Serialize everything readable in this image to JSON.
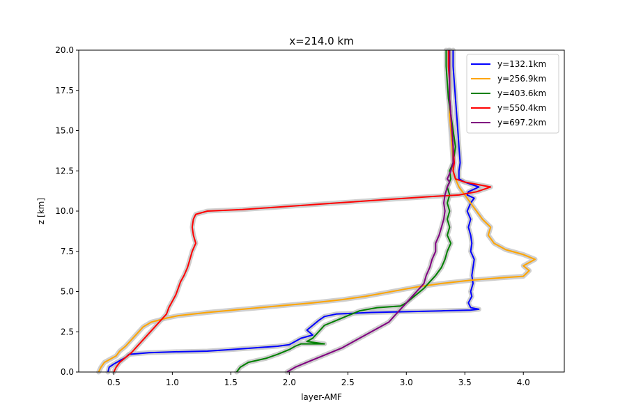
{
  "chart_data": {
    "type": "line",
    "title": "x=214.0 km",
    "xlabel": "layer-AMF",
    "ylabel": "z [km]",
    "xlim": [
      0.2,
      4.35
    ],
    "ylim": [
      0,
      20
    ],
    "xticks": [
      0.5,
      1.0,
      1.5,
      2.0,
      2.5,
      3.0,
      3.5,
      4.0
    ],
    "xtick_labels": [
      "0.5",
      "1.0",
      "1.5",
      "2.0",
      "2.5",
      "3.0",
      "3.5",
      "4.0"
    ],
    "yticks": [
      0,
      2.5,
      5,
      7.5,
      10,
      12.5,
      15,
      17.5,
      20
    ],
    "ytick_labels": [
      "0.0",
      "2.5",
      "5.0",
      "7.5",
      "10.0",
      "12.5",
      "15.0",
      "17.5",
      "20.0"
    ],
    "grid": false,
    "legend_position": "top-right",
    "uncertainty_band_color": "#bfbfbf",
    "series": [
      {
        "name": "y=132.1km",
        "color": "#0000ff",
        "points": [
          [
            0.45,
            0
          ],
          [
            0.46,
            0.3
          ],
          [
            0.5,
            0.5
          ],
          [
            0.55,
            0.7
          ],
          [
            0.6,
            0.9
          ],
          [
            0.63,
            1.1
          ],
          [
            0.8,
            1.2
          ],
          [
            1.0,
            1.25
          ],
          [
            1.3,
            1.3
          ],
          [
            1.5,
            1.4
          ],
          [
            1.7,
            1.5
          ],
          [
            1.9,
            1.6
          ],
          [
            2.0,
            1.7
          ],
          [
            2.05,
            1.9
          ],
          [
            2.1,
            2.1
          ],
          [
            2.2,
            2.3
          ],
          [
            2.15,
            2.6
          ],
          [
            2.2,
            2.9
          ],
          [
            2.25,
            3.2
          ],
          [
            2.3,
            3.45
          ],
          [
            2.4,
            3.6
          ],
          [
            2.7,
            3.7
          ],
          [
            3.0,
            3.75
          ],
          [
            3.3,
            3.8
          ],
          [
            3.55,
            3.85
          ],
          [
            3.62,
            3.9
          ],
          [
            3.55,
            4.0
          ],
          [
            3.53,
            4.3
          ],
          [
            3.56,
            4.7
          ],
          [
            3.55,
            5.0
          ],
          [
            3.57,
            5.5
          ],
          [
            3.56,
            6.0
          ],
          [
            3.57,
            6.5
          ],
          [
            3.58,
            7.0
          ],
          [
            3.55,
            7.5
          ],
          [
            3.56,
            8.0
          ],
          [
            3.55,
            8.5
          ],
          [
            3.53,
            9.0
          ],
          [
            3.55,
            9.5
          ],
          [
            3.52,
            10.0
          ],
          [
            3.55,
            10.5
          ],
          [
            3.58,
            10.8
          ],
          [
            3.52,
            11.0
          ],
          [
            3.53,
            11.2
          ],
          [
            3.62,
            11.5
          ],
          [
            3.5,
            11.8
          ],
          [
            3.45,
            12.0
          ],
          [
            3.45,
            12.5
          ],
          [
            3.46,
            13.0
          ],
          [
            3.45,
            14.0
          ],
          [
            3.44,
            15.0
          ],
          [
            3.43,
            16.0
          ],
          [
            3.42,
            17.0
          ],
          [
            3.41,
            18.0
          ],
          [
            3.4,
            19.0
          ],
          [
            3.4,
            20.0
          ]
        ]
      },
      {
        "name": "y=256.9km",
        "color": "#ffa500",
        "points": [
          [
            0.37,
            0
          ],
          [
            0.39,
            0.3
          ],
          [
            0.42,
            0.6
          ],
          [
            0.47,
            0.8
          ],
          [
            0.52,
            1.0
          ],
          [
            0.55,
            1.3
          ],
          [
            0.6,
            1.6
          ],
          [
            0.65,
            2.0
          ],
          [
            0.7,
            2.4
          ],
          [
            0.75,
            2.8
          ],
          [
            0.82,
            3.1
          ],
          [
            0.95,
            3.35
          ],
          [
            1.05,
            3.5
          ],
          [
            1.3,
            3.7
          ],
          [
            1.6,
            3.9
          ],
          [
            1.9,
            4.1
          ],
          [
            2.2,
            4.3
          ],
          [
            2.45,
            4.5
          ],
          [
            2.65,
            4.7
          ],
          [
            2.8,
            4.9
          ],
          [
            2.95,
            5.1
          ],
          [
            3.1,
            5.3
          ],
          [
            3.3,
            5.5
          ],
          [
            3.55,
            5.7
          ],
          [
            3.8,
            5.85
          ],
          [
            4.0,
            5.95
          ],
          [
            4.05,
            6.3
          ],
          [
            4.0,
            6.6
          ],
          [
            4.1,
            7.0
          ],
          [
            4.0,
            7.3
          ],
          [
            3.85,
            7.6
          ],
          [
            3.75,
            8.0
          ],
          [
            3.7,
            8.5
          ],
          [
            3.72,
            9.0
          ],
          [
            3.65,
            9.5
          ],
          [
            3.6,
            10.0
          ],
          [
            3.55,
            10.5
          ],
          [
            3.5,
            11.0
          ],
          [
            3.45,
            11.5
          ],
          [
            3.42,
            12.0
          ],
          [
            3.4,
            12.5
          ],
          [
            3.4,
            13.0
          ],
          [
            3.39,
            14.0
          ],
          [
            3.38,
            15.0
          ],
          [
            3.37,
            16.0
          ],
          [
            3.37,
            17.0
          ],
          [
            3.37,
            18.0
          ],
          [
            3.37,
            19.0
          ],
          [
            3.37,
            20.0
          ]
        ]
      },
      {
        "name": "y=403.6km",
        "color": "#008000",
        "points": [
          [
            1.55,
            0
          ],
          [
            1.58,
            0.3
          ],
          [
            1.65,
            0.6
          ],
          [
            1.8,
            0.85
          ],
          [
            1.9,
            1.1
          ],
          [
            2.0,
            1.4
          ],
          [
            2.05,
            1.6
          ],
          [
            2.1,
            1.75
          ],
          [
            2.3,
            1.75
          ],
          [
            2.15,
            1.9
          ],
          [
            2.2,
            2.1
          ],
          [
            2.25,
            2.5
          ],
          [
            2.3,
            2.9
          ],
          [
            2.4,
            3.2
          ],
          [
            2.5,
            3.5
          ],
          [
            2.6,
            3.8
          ],
          [
            2.75,
            4.0
          ],
          [
            2.95,
            4.1
          ],
          [
            3.0,
            4.3
          ],
          [
            3.05,
            4.6
          ],
          [
            3.1,
            4.9
          ],
          [
            3.15,
            5.2
          ],
          [
            3.2,
            5.6
          ],
          [
            3.25,
            6.0
          ],
          [
            3.3,
            6.5
          ],
          [
            3.33,
            7.0
          ],
          [
            3.35,
            7.5
          ],
          [
            3.38,
            8.0
          ],
          [
            3.35,
            8.5
          ],
          [
            3.37,
            9.0
          ],
          [
            3.35,
            9.5
          ],
          [
            3.37,
            10.0
          ],
          [
            3.35,
            10.5
          ],
          [
            3.37,
            11.0
          ],
          [
            3.35,
            11.5
          ],
          [
            3.38,
            12.0
          ],
          [
            3.37,
            12.5
          ],
          [
            3.4,
            13.0
          ],
          [
            3.42,
            14.0
          ],
          [
            3.4,
            15.0
          ],
          [
            3.38,
            16.0
          ],
          [
            3.36,
            17.0
          ],
          [
            3.35,
            18.0
          ],
          [
            3.34,
            19.0
          ],
          [
            3.34,
            20.0
          ]
        ]
      },
      {
        "name": "y=550.4km",
        "color": "#ff0000",
        "points": [
          [
            0.5,
            0
          ],
          [
            0.52,
            0.3
          ],
          [
            0.55,
            0.6
          ],
          [
            0.6,
            0.9
          ],
          [
            0.65,
            1.2
          ],
          [
            0.7,
            1.6
          ],
          [
            0.75,
            2.0
          ],
          [
            0.8,
            2.4
          ],
          [
            0.85,
            2.8
          ],
          [
            0.9,
            3.2
          ],
          [
            0.95,
            3.6
          ],
          [
            0.97,
            4.0
          ],
          [
            1.0,
            4.4
          ],
          [
            1.03,
            4.8
          ],
          [
            1.05,
            5.2
          ],
          [
            1.07,
            5.6
          ],
          [
            1.1,
            6.0
          ],
          [
            1.13,
            6.5
          ],
          [
            1.15,
            7.0
          ],
          [
            1.17,
            7.5
          ],
          [
            1.2,
            8.0
          ],
          [
            1.18,
            8.5
          ],
          [
            1.17,
            9.0
          ],
          [
            1.18,
            9.5
          ],
          [
            1.2,
            9.8
          ],
          [
            1.3,
            10.0
          ],
          [
            1.6,
            10.1
          ],
          [
            2.0,
            10.3
          ],
          [
            2.4,
            10.5
          ],
          [
            2.8,
            10.7
          ],
          [
            3.2,
            10.9
          ],
          [
            3.45,
            11.0
          ],
          [
            3.6,
            11.2
          ],
          [
            3.72,
            11.5
          ],
          [
            3.5,
            11.8
          ],
          [
            3.42,
            12.0
          ],
          [
            3.4,
            12.5
          ],
          [
            3.41,
            13.0
          ],
          [
            3.4,
            14.0
          ],
          [
            3.39,
            15.0
          ],
          [
            3.38,
            16.0
          ],
          [
            3.37,
            17.0
          ],
          [
            3.37,
            18.0
          ],
          [
            3.36,
            19.0
          ],
          [
            3.36,
            20.0
          ]
        ]
      },
      {
        "name": "y=697.2km",
        "color": "#800080",
        "points": [
          [
            1.98,
            0
          ],
          [
            2.05,
            0.3
          ],
          [
            2.15,
            0.6
          ],
          [
            2.25,
            0.9
          ],
          [
            2.35,
            1.2
          ],
          [
            2.45,
            1.5
          ],
          [
            2.55,
            1.9
          ],
          [
            2.65,
            2.3
          ],
          [
            2.75,
            2.7
          ],
          [
            2.85,
            3.1
          ],
          [
            2.9,
            3.5
          ],
          [
            2.95,
            3.9
          ],
          [
            3.0,
            4.3
          ],
          [
            3.05,
            4.7
          ],
          [
            3.1,
            5.1
          ],
          [
            3.15,
            5.5
          ],
          [
            3.17,
            6.0
          ],
          [
            3.2,
            6.5
          ],
          [
            3.22,
            7.0
          ],
          [
            3.25,
            7.5
          ],
          [
            3.25,
            8.0
          ],
          [
            3.28,
            8.5
          ],
          [
            3.3,
            9.0
          ],
          [
            3.32,
            9.5
          ],
          [
            3.33,
            10.0
          ],
          [
            3.32,
            10.5
          ],
          [
            3.33,
            11.0
          ],
          [
            3.35,
            11.5
          ],
          [
            3.37,
            11.8
          ],
          [
            3.35,
            12.0
          ],
          [
            3.38,
            12.5
          ],
          [
            3.4,
            13.0
          ],
          [
            3.4,
            14.0
          ],
          [
            3.39,
            15.0
          ],
          [
            3.38,
            16.0
          ],
          [
            3.37,
            17.0
          ],
          [
            3.37,
            18.0
          ],
          [
            3.37,
            19.0
          ],
          [
            3.37,
            20.0
          ]
        ]
      }
    ]
  }
}
